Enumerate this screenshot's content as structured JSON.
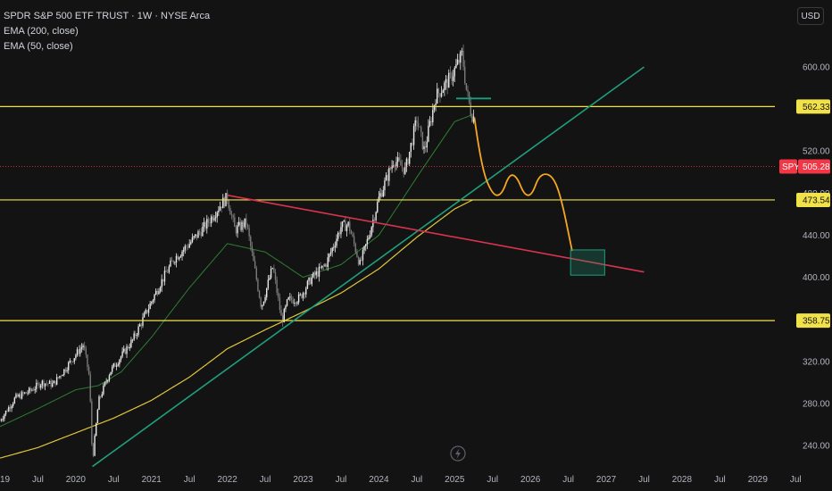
{
  "legend": {
    "title": "SPDR S&P 500 ETF TRUST · 1W · NYSE Arca",
    "ema200": "EMA (200, close)",
    "ema50": "EMA (50, close)"
  },
  "currency": "USD",
  "colors": {
    "background": "#131313",
    "up_candle": "#e8e8e8",
    "down_candle": "#7a7a7a",
    "ema200": "#e0c53a",
    "ema50": "#2e7d32",
    "horizontal_levels": "#f2e24a",
    "support_trendline": "#1f9e7e",
    "resistance_trendline": "#d9334f",
    "projection_path": "#f5a623",
    "target_box": "#1f9e7e",
    "spy_badge": "#f23645",
    "dotted_price_line": "#f23645"
  },
  "chart_data": {
    "type": "candlestick",
    "symbol": "SPY",
    "ylim": [
      215,
      645
    ],
    "xlim": [
      2019.0,
      2029.98
    ],
    "y_ticks": [
      240,
      280,
      320,
      360,
      400,
      440,
      480,
      520,
      560,
      600
    ],
    "y_tick_labels": [
      "240.00",
      "280.00",
      "320.00",
      "360.00",
      "400.00",
      "440.00",
      "480.00",
      "520.00",
      "560.00",
      "600.00"
    ],
    "x_ticks": [
      {
        "label": "19",
        "t": 2019.0
      },
      {
        "label": "Jul",
        "t": 2019.5
      },
      {
        "label": "2020",
        "t": 2020.0
      },
      {
        "label": "Jul",
        "t": 2020.5
      },
      {
        "label": "2021",
        "t": 2021.0
      },
      {
        "label": "Jul",
        "t": 2021.5
      },
      {
        "label": "2022",
        "t": 2022.0
      },
      {
        "label": "Jul",
        "t": 2022.5
      },
      {
        "label": "2023",
        "t": 2023.0
      },
      {
        "label": "Jul",
        "t": 2023.5
      },
      {
        "label": "2024",
        "t": 2024.0
      },
      {
        "label": "Jul",
        "t": 2024.5
      },
      {
        "label": "2025",
        "t": 2025.0
      },
      {
        "label": "Jul",
        "t": 2025.5
      },
      {
        "label": "2026",
        "t": 2026.0
      },
      {
        "label": "Jul",
        "t": 2026.5
      },
      {
        "label": "2027",
        "t": 2027.0
      },
      {
        "label": "Jul",
        "t": 2027.5
      },
      {
        "label": "2028",
        "t": 2028.0
      },
      {
        "label": "Jul",
        "t": 2028.5
      },
      {
        "label": "2029",
        "t": 2029.0
      },
      {
        "label": "Jul",
        "t": 2029.5
      }
    ],
    "price_anchors": [
      [
        2019.0,
        264
      ],
      [
        2019.2,
        285
      ],
      [
        2019.4,
        292
      ],
      [
        2019.55,
        300
      ],
      [
        2019.7,
        298
      ],
      [
        2019.85,
        312
      ],
      [
        2020.1,
        336
      ],
      [
        2020.18,
        305
      ],
      [
        2020.22,
        225
      ],
      [
        2020.3,
        282
      ],
      [
        2020.45,
        310
      ],
      [
        2020.6,
        325
      ],
      [
        2020.75,
        340
      ],
      [
        2020.9,
        362
      ],
      [
        2021.1,
        392
      ],
      [
        2021.3,
        418
      ],
      [
        2021.5,
        432
      ],
      [
        2021.7,
        448
      ],
      [
        2021.9,
        468
      ],
      [
        2022.0,
        476
      ],
      [
        2022.1,
        445
      ],
      [
        2022.25,
        452
      ],
      [
        2022.45,
        372
      ],
      [
        2022.6,
        410
      ],
      [
        2022.72,
        358
      ],
      [
        2022.8,
        378
      ],
      [
        2022.95,
        380
      ],
      [
        2023.1,
        398
      ],
      [
        2023.3,
        412
      ],
      [
        2023.5,
        448
      ],
      [
        2023.6,
        450
      ],
      [
        2023.75,
        412
      ],
      [
        2023.85,
        435
      ],
      [
        2024.0,
        475
      ],
      [
        2024.2,
        512
      ],
      [
        2024.35,
        502
      ],
      [
        2024.5,
        550
      ],
      [
        2024.6,
        520
      ],
      [
        2024.75,
        572
      ],
      [
        2024.95,
        590
      ],
      [
        2025.1,
        612
      ],
      [
        2025.15,
        580
      ],
      [
        2025.22,
        555
      ],
      [
        2025.26,
        552
      ]
    ],
    "ema200_anchors": [
      [
        2019.0,
        228
      ],
      [
        2019.5,
        238
      ],
      [
        2020.0,
        252
      ],
      [
        2020.5,
        266
      ],
      [
        2021.0,
        283
      ],
      [
        2021.5,
        305
      ],
      [
        2022.0,
        332
      ],
      [
        2022.5,
        350
      ],
      [
        2023.0,
        367
      ],
      [
        2023.5,
        385
      ],
      [
        2024.0,
        408
      ],
      [
        2024.5,
        438
      ],
      [
        2025.0,
        465
      ],
      [
        2025.25,
        474
      ]
    ],
    "ema50_anchors": [
      [
        2019.0,
        258
      ],
      [
        2019.5,
        275
      ],
      [
        2020.0,
        293
      ],
      [
        2020.3,
        297
      ],
      [
        2020.6,
        310
      ],
      [
        2021.0,
        343
      ],
      [
        2021.5,
        390
      ],
      [
        2022.0,
        432
      ],
      [
        2022.5,
        424
      ],
      [
        2023.0,
        400
      ],
      [
        2023.5,
        412
      ],
      [
        2024.0,
        440
      ],
      [
        2024.5,
        495
      ],
      [
        2025.0,
        548
      ],
      [
        2025.25,
        555
      ]
    ],
    "horizontal_levels": [
      {
        "value": 562.33,
        "label": "562.33"
      },
      {
        "value": 473.54,
        "label": "473.54"
      },
      {
        "value": 358.75,
        "label": "358.75"
      }
    ],
    "current_price": {
      "symbol": "SPY",
      "value": 505.28,
      "label": "505.28"
    },
    "support_trendline": {
      "from": [
        2020.22,
        220
      ],
      "to": [
        2027.5,
        600
      ]
    },
    "resistance_trendline": {
      "from": [
        2022.0,
        478
      ],
      "to": [
        2027.5,
        405
      ]
    },
    "short_resistance_line": {
      "from": [
        2025.02,
        570
      ],
      "to": [
        2025.48,
        570
      ]
    },
    "projection_path": [
      [
        2025.26,
        552
      ],
      [
        2025.35,
        505
      ],
      [
        2025.5,
        478
      ],
      [
        2025.62,
        478
      ],
      [
        2025.72,
        498
      ],
      [
        2025.82,
        496
      ],
      [
        2025.92,
        478
      ],
      [
        2026.02,
        478
      ],
      [
        2026.12,
        498
      ],
      [
        2026.28,
        498
      ],
      [
        2026.4,
        478
      ],
      [
        2026.55,
        425
      ]
    ],
    "target_box": {
      "t_start": 2026.53,
      "t_end": 2026.98,
      "price_top": 426,
      "price_bottom": 402
    }
  }
}
